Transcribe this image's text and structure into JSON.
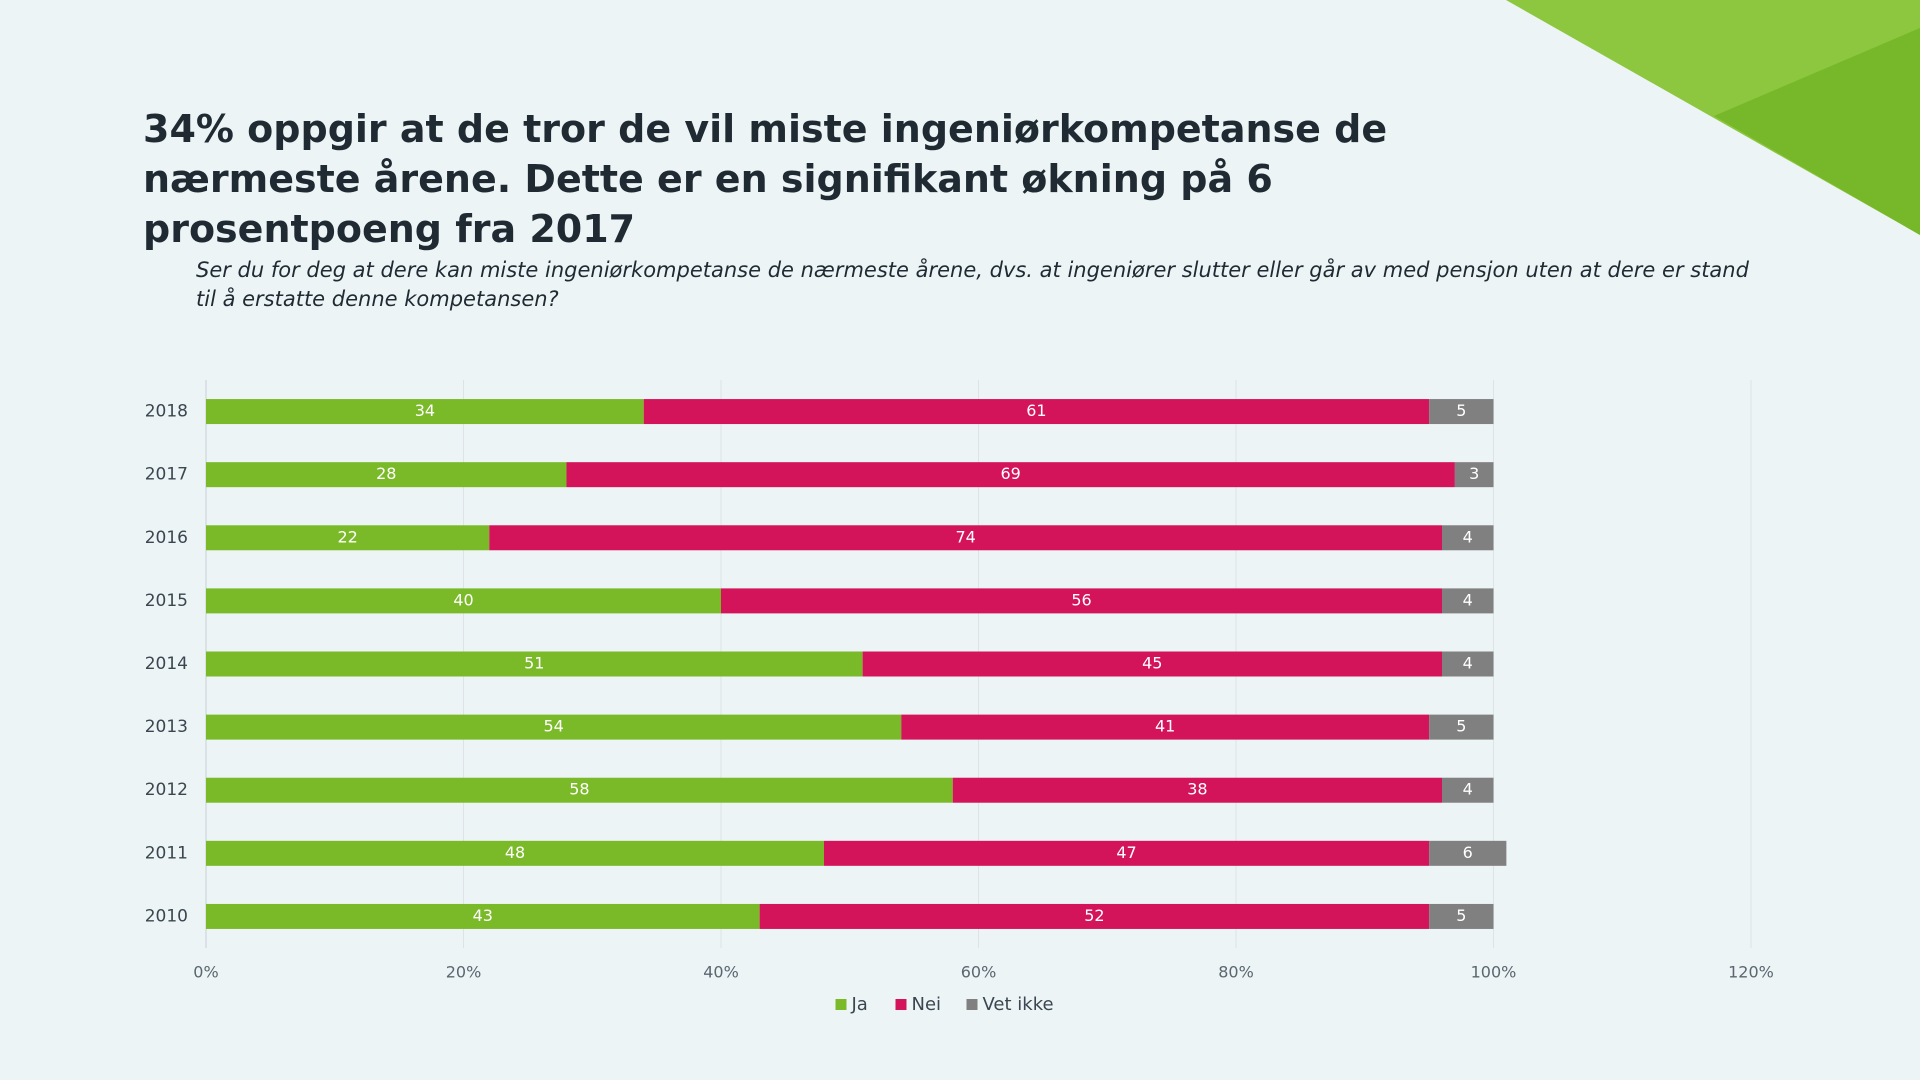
{
  "chart_data": {
    "type": "stacked-bar-horizontal",
    "title": "34% oppgir at de tror de vil miste ingeniørkompetanse de nærmeste årene. Dette er en signifikant økning på 6 prosentpoeng fra 2017",
    "subtitle": "Ser du for deg at dere kan miste ingeniørkompetanse de nærmeste årene, dvs. at ingeniører slutter eller går av med pensjon uten at dere er stand til å erstatte denne kompetansen?",
    "categories": [
      "2018",
      "2017",
      "2016",
      "2015",
      "2014",
      "2013",
      "2012",
      "2011",
      "2010"
    ],
    "series": [
      {
        "name": "Ja",
        "color": "#7aba28",
        "values": [
          34,
          28,
          22,
          40,
          51,
          54,
          58,
          48,
          43
        ]
      },
      {
        "name": "Nei",
        "color": "#d4145a",
        "values": [
          61,
          69,
          74,
          56,
          45,
          41,
          38,
          47,
          52
        ]
      },
      {
        "name": "Vet ikke",
        "color": "#808080",
        "values": [
          5,
          3,
          4,
          4,
          4,
          5,
          4,
          6,
          5
        ]
      }
    ],
    "xlim": [
      0,
      120
    ],
    "xticks": [
      {
        "value": 0,
        "label": "0%"
      },
      {
        "value": 20,
        "label": "20%"
      },
      {
        "value": 40,
        "label": "40%"
      },
      {
        "value": 60,
        "label": "60%"
      },
      {
        "value": 80,
        "label": "80%"
      },
      {
        "value": 100,
        "label": "100%"
      },
      {
        "value": 120,
        "label": "120%"
      }
    ],
    "grid": true,
    "legend": "bottom"
  }
}
